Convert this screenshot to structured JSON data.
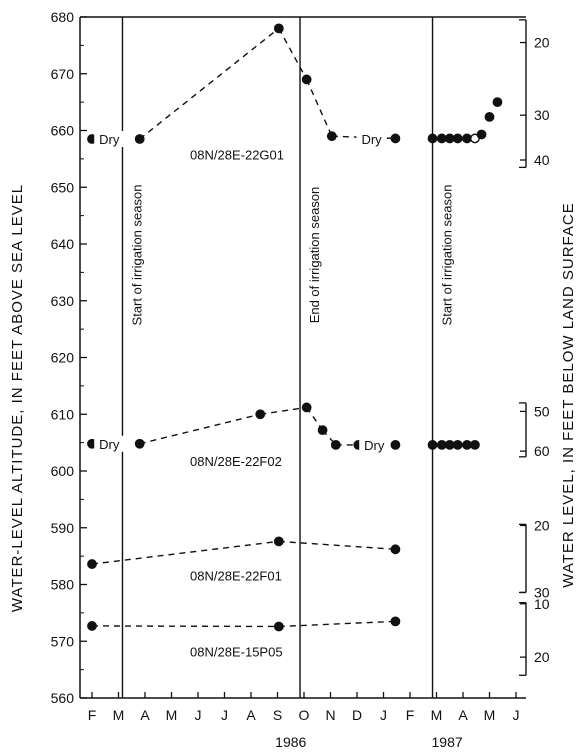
{
  "chart_data": {
    "type": "line",
    "xlabel": "",
    "ylabel": "WATER-LEVEL ALTITUDE, IN FEET ABOVE SEA LEVEL",
    "y2label": "WATER LEVEL, IN FEET BELOW LAND SURFACE",
    "ylim": [
      560,
      680
    ],
    "ytick_labels": [
      "560",
      "570",
      "580",
      "590",
      "600",
      "610",
      "620",
      "630",
      "640",
      "650",
      "660",
      "670",
      "680"
    ],
    "x_month_labels": [
      "F",
      "M",
      "A",
      "M",
      "J",
      "J",
      "A",
      "S",
      "O",
      "N",
      "D",
      "J",
      "F",
      "M",
      "A",
      "M",
      "J"
    ],
    "years": [
      {
        "label": "1986",
        "at_month": 7.5
      },
      {
        "label": "1987",
        "at_month": 13.4
      }
    ],
    "events": [
      {
        "label": "Start of irrigation season",
        "month": 1.15
      },
      {
        "label": "End of irrigation season",
        "month": 7.85
      },
      {
        "label": "Start of irrigation season",
        "month": 12.85
      }
    ],
    "dry_labels": [
      {
        "text": "Dry",
        "month": 0.65,
        "y": 658.5
      },
      {
        "text": "Dry",
        "month": 10.55,
        "y": 658.5
      },
      {
        "text": "Dry",
        "month": 0.65,
        "y": 604.8
      },
      {
        "text": "Dry",
        "month": 10.65,
        "y": 604.6
      }
    ],
    "series": [
      {
        "name": "08N/28E-22G01",
        "label_at": {
          "month": 3.7,
          "y": 655.8
        },
        "points": [
          [
            0,
            658.5
          ],
          [
            1.8,
            658.5
          ],
          [
            7.05,
            678
          ],
          [
            8.1,
            669
          ],
          [
            9.05,
            659
          ],
          [
            11.45,
            658.6
          ],
          [
            12.85,
            658.6
          ],
          [
            13.2,
            658.6
          ],
          [
            13.5,
            658.6
          ],
          [
            13.8,
            658.6
          ],
          [
            14.15,
            658.6
          ],
          [
            14.45,
            658.6
          ],
          [
            14.7,
            659.3
          ],
          [
            15.0,
            662.4
          ],
          [
            15.3,
            665.0
          ]
        ],
        "dashed_segments": [
          [
            1,
            2
          ],
          [
            2,
            3
          ],
          [
            3,
            4
          ],
          [
            4,
            5
          ]
        ],
        "open_points": [
          11
        ]
      },
      {
        "name": "08N/28E-22F02",
        "label_at": {
          "month": 3.7,
          "y": 601.8
        },
        "points": [
          [
            0,
            604.8
          ],
          [
            1.8,
            604.8
          ],
          [
            6.35,
            610.0
          ],
          [
            8.1,
            611.2
          ],
          [
            8.7,
            607.2
          ],
          [
            9.2,
            604.6
          ],
          [
            10.05,
            604.6
          ],
          [
            11.45,
            604.6
          ],
          [
            12.85,
            604.6
          ],
          [
            13.2,
            604.6
          ],
          [
            13.5,
            604.6
          ],
          [
            13.8,
            604.6
          ],
          [
            14.15,
            604.6
          ],
          [
            14.45,
            604.6
          ]
        ],
        "dashed_segments": [
          [
            1,
            2
          ],
          [
            2,
            3
          ],
          [
            3,
            4
          ],
          [
            4,
            5
          ],
          [
            5,
            6
          ]
        ],
        "open_points": []
      },
      {
        "name": "08N/28E-22F01",
        "label_at": {
          "month": 3.7,
          "y": 581.6
        },
        "points": [
          [
            0,
            583.6
          ],
          [
            7.05,
            587.6
          ],
          [
            11.45,
            586.2
          ]
        ],
        "dashed_segments": [
          [
            0,
            1
          ],
          [
            1,
            2
          ]
        ],
        "open_points": []
      },
      {
        "name": "08N/28E-15P05",
        "label_at": {
          "month": 3.7,
          "y": 568.2
        },
        "points": [
          [
            0,
            572.7
          ],
          [
            7.05,
            572.6
          ],
          [
            11.45,
            573.5
          ]
        ],
        "dashed_segments": [
          [
            0,
            1
          ],
          [
            1,
            2
          ]
        ],
        "open_points": []
      }
    ],
    "right_axes": [
      {
        "ticks": [
          {
            "label": "20",
            "y": 675.5
          },
          {
            "label": "30",
            "y": 662.7
          },
          {
            "label": "40",
            "y": 654.8
          }
        ],
        "bracket": [
          679.5,
          653.5
        ]
      },
      {
        "ticks": [
          {
            "label": "50",
            "y": 610.5
          },
          {
            "label": "60",
            "y": 603.5
          }
        ],
        "bracket": [
          612,
          602.5
        ]
      },
      {
        "ticks": [
          {
            "label": "20",
            "y": 590.4
          },
          {
            "label": "30",
            "y": 578.6
          }
        ],
        "bracket": [
          590.6,
          578.6
        ]
      },
      {
        "ticks": [
          {
            "label": "10",
            "y": 576.6
          },
          {
            "label": "20",
            "y": 567.2
          }
        ],
        "bracket": [
          576.8,
          564
        ]
      }
    ]
  }
}
